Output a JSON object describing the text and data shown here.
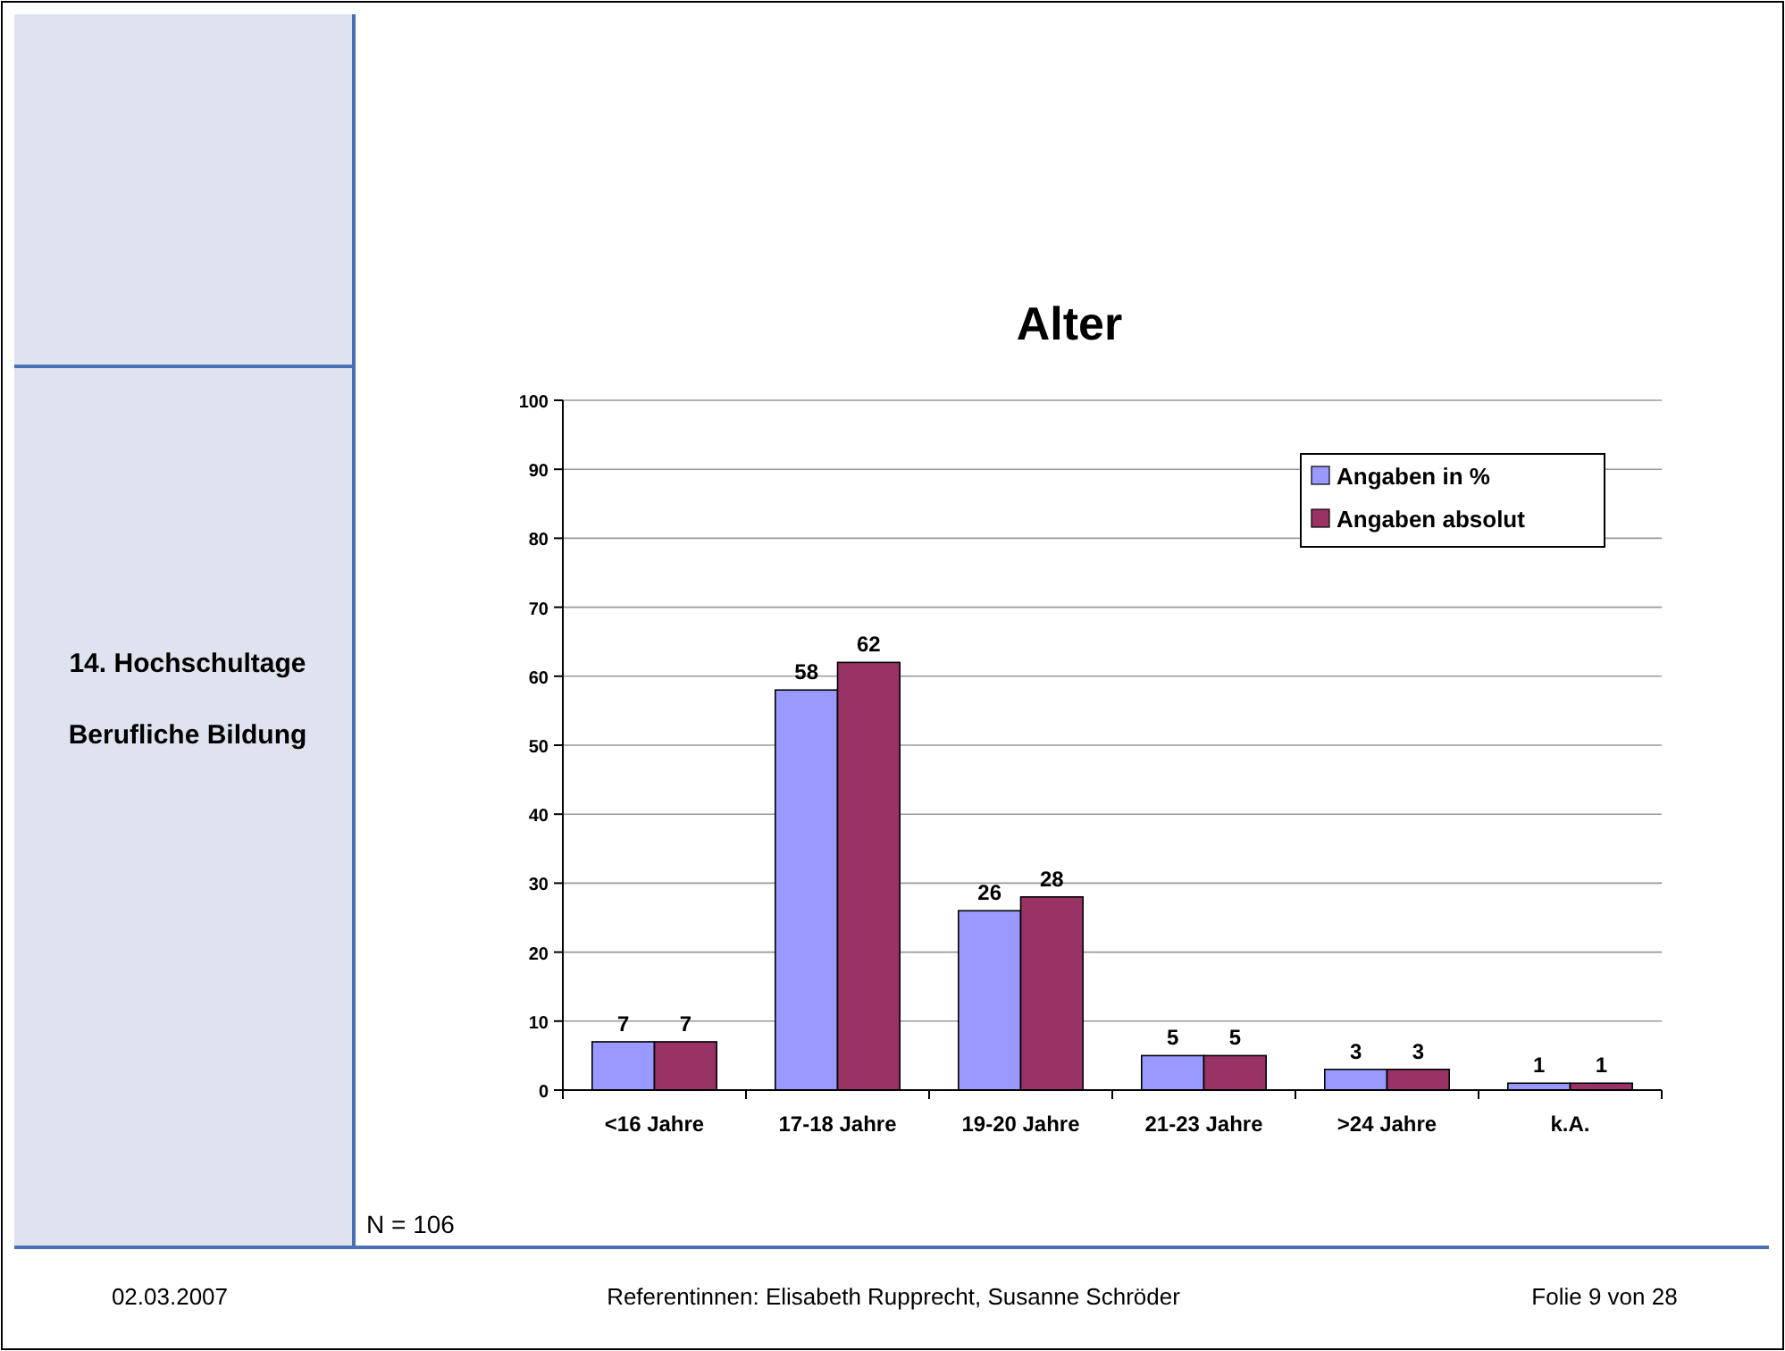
{
  "chart_data": {
    "type": "bar",
    "title": "Alter",
    "categories": [
      "<16 Jahre",
      "17-18 Jahre",
      "19-20 Jahre",
      "21-23 Jahre",
      ">24 Jahre",
      "k.A."
    ],
    "series": [
      {
        "name": "Angaben in %",
        "color": "#9999ff",
        "values": [
          7,
          58,
          26,
          5,
          3,
          1
        ]
      },
      {
        "name": "Angaben absolut",
        "color": "#993366",
        "values": [
          7,
          62,
          28,
          5,
          3,
          1
        ]
      }
    ],
    "ylim": [
      0,
      100
    ],
    "yticks": [
      0,
      10,
      20,
      30,
      40,
      50,
      60,
      70,
      80,
      90,
      100
    ],
    "grid": "y",
    "legend": "top right",
    "data_labels": true,
    "annotations": [
      "14. Hochschultage",
      "Berufliche Bildung",
      "N = 106",
      "02.03.2007",
      "Referentinnen: Elisabeth Rupprecht, Susanne Schröder",
      "Folie 9 von 28"
    ]
  }
}
